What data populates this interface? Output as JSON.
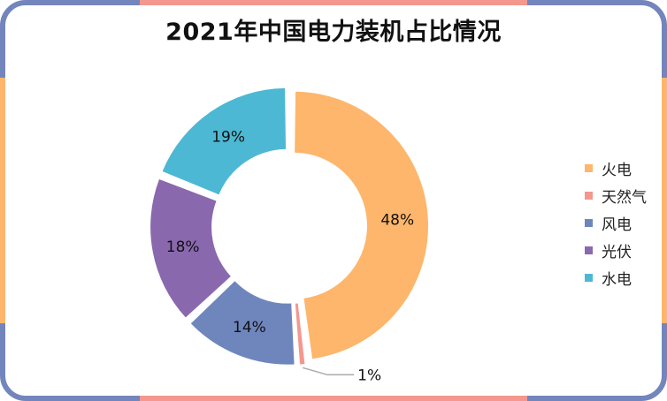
{
  "chart_data": {
    "type": "pie",
    "variant": "donut",
    "title": "2021年中国电力装机占比情况",
    "categories": [
      "火电",
      "天然气",
      "风电",
      "光伏",
      "水电"
    ],
    "values": [
      48,
      1,
      14,
      18,
      19
    ],
    "labels": [
      "48%",
      "1%",
      "14%",
      "18%",
      "19%"
    ],
    "colors": [
      "#FDB66B",
      "#F4978E",
      "#6F86BD",
      "#8A68AE",
      "#4DB8D3"
    ],
    "legend_position": "right"
  },
  "frame_colors": {
    "blue": "#7385BD",
    "orange": "#FDB66B",
    "pink": "#F4978E"
  }
}
